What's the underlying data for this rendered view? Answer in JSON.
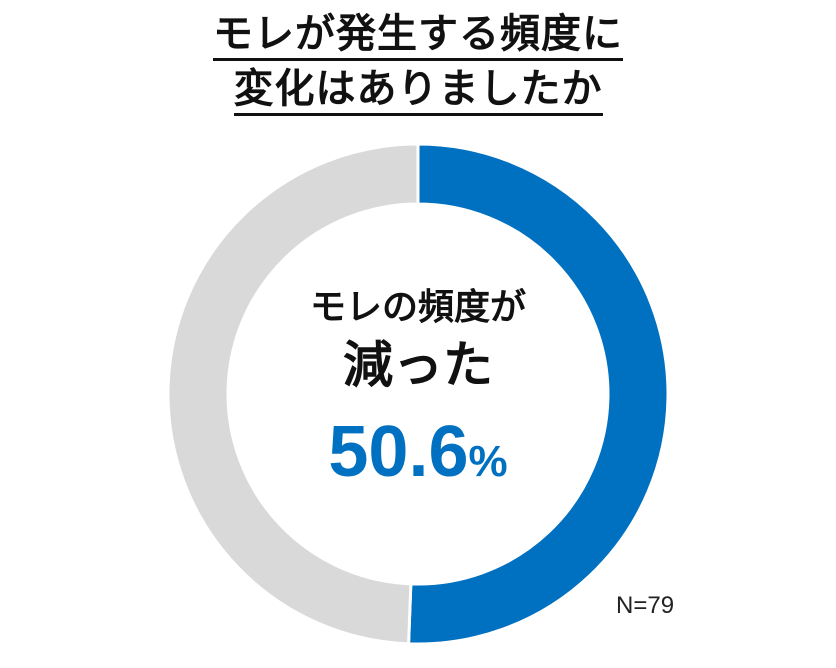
{
  "title": {
    "line1": "モレが発生する頻度に",
    "line2": "変化はありましたか"
  },
  "center": {
    "label1": "モレの頻度が",
    "label2": "減った",
    "value": "50.6",
    "unit": "%"
  },
  "note": "N=79",
  "colors": {
    "primary": "#0070C0",
    "rest": "#D9D9D9",
    "text": "#111111"
  },
  "chart_data": {
    "type": "pie",
    "donut": true,
    "categories": [
      "減った",
      ""
    ],
    "values": [
      50.6,
      49.4
    ],
    "value_unit": "%",
    "title": "モレが発生する頻度に変化はありましたか",
    "sample_size": "N=79"
  }
}
